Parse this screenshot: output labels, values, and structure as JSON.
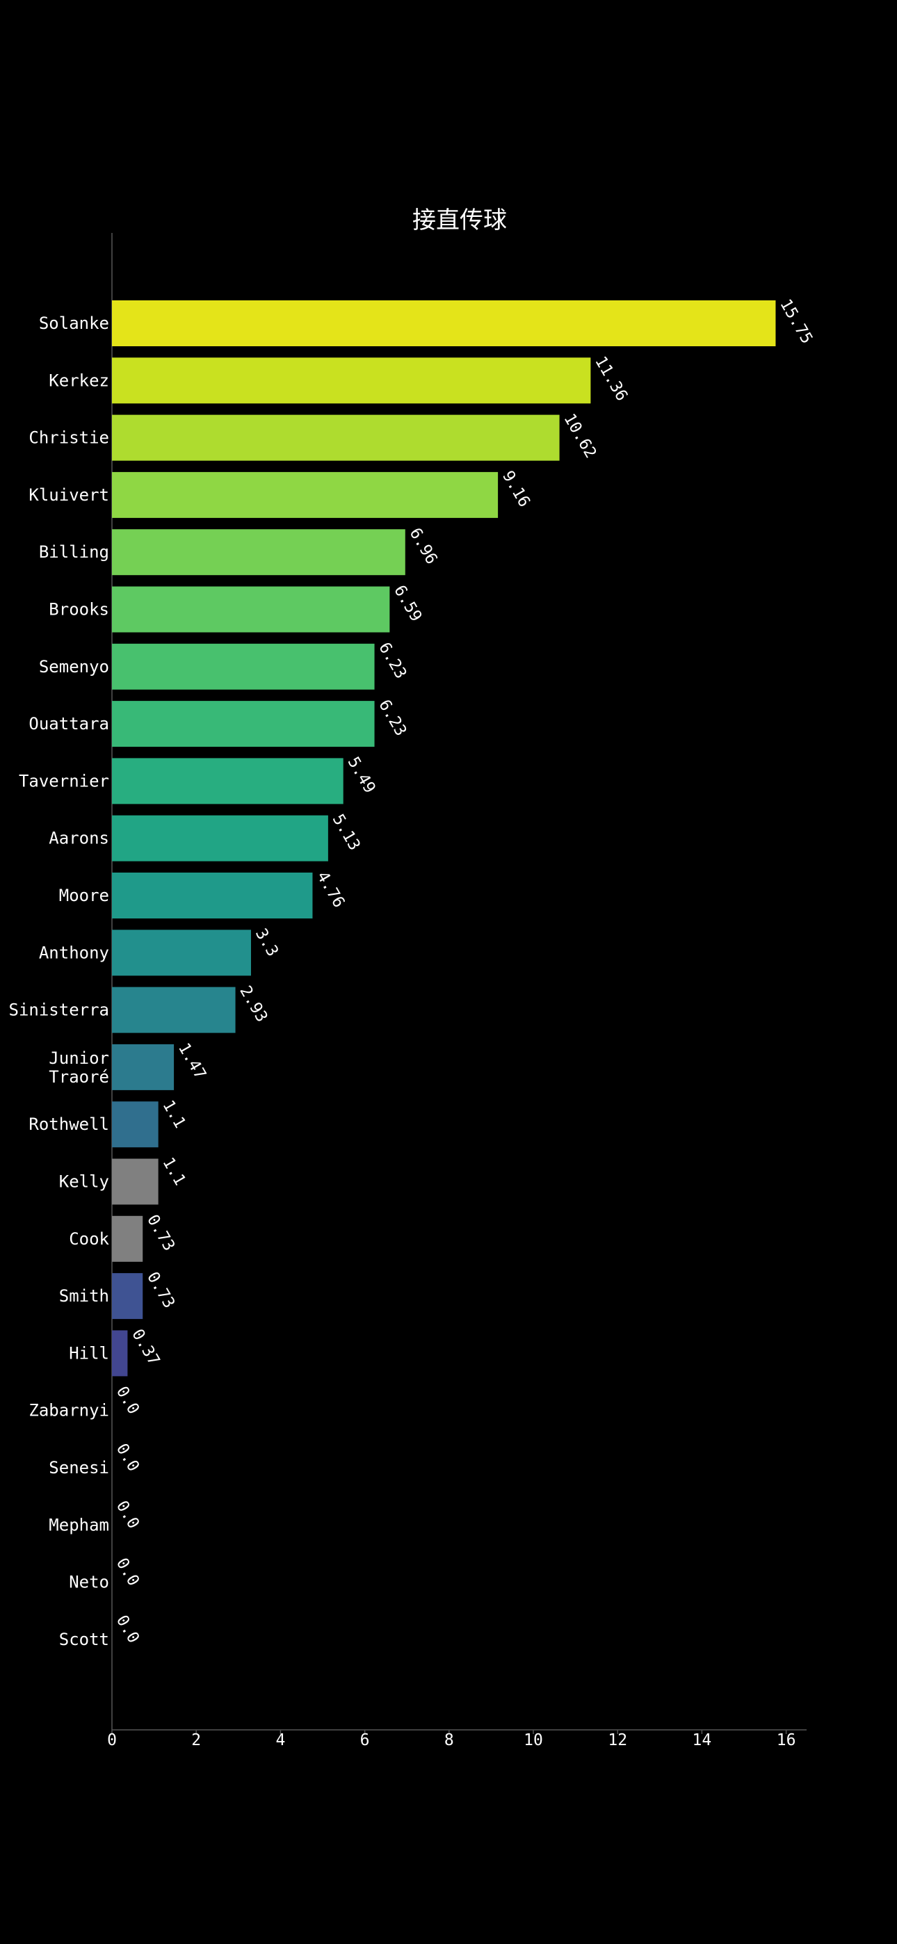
{
  "chart_data": {
    "type": "bar",
    "orientation": "horizontal",
    "title": "接直传球",
    "xlabel": "",
    "ylabel": "",
    "xlim": [
      0,
      16.5
    ],
    "x_ticks": [
      0,
      2,
      4,
      6,
      8,
      10,
      12,
      14,
      16
    ],
    "grid": false,
    "legend": "none",
    "categories": [
      "Solanke",
      "Kerkez",
      "Christie",
      "Kluivert",
      "Billing",
      "Brooks",
      "Semenyo",
      "Ouattara",
      "Tavernier",
      "Aarons",
      "Moore",
      "Anthony",
      "Sinisterra",
      "Junior Traoré",
      "Rothwell",
      "Kelly",
      "Cook",
      "Smith",
      "Hill",
      "Zabarnyi",
      "Senesi",
      "Mepham",
      "Neto",
      "Scott"
    ],
    "values": [
      15.75,
      11.36,
      10.62,
      9.16,
      6.96,
      6.59,
      6.23,
      6.23,
      5.49,
      5.13,
      4.76,
      3.3,
      2.93,
      1.47,
      1.1,
      1.1,
      0.73,
      0.73,
      0.37,
      0.0,
      0.0,
      0.0,
      0.0,
      0.0
    ],
    "value_labels": [
      "15.75",
      "11.36",
      "10.62",
      "9.16",
      "6.96",
      "6.59",
      "6.23",
      "6.23",
      "5.49",
      "5.13",
      "4.76",
      "3.3",
      "2.93",
      "1.47",
      "1.1",
      "1.1",
      "0.73",
      "0.73",
      "0.37",
      "0.0",
      "0.0",
      "0.0",
      "0.0",
      "0.0"
    ],
    "colors": [
      "#e4e419",
      "#c9e120",
      "#aedc2f",
      "#8fd744",
      "#75d054",
      "#5ec962",
      "#48c16e",
      "#38b977",
      "#28ae80",
      "#21a585",
      "#1f9a8a",
      "#22908d",
      "#27858e",
      "#2c7b8e",
      "#306f8e",
      "#808080",
      "#808080",
      "#3f5393",
      "#424690",
      "#414487",
      "#414487",
      "#414487",
      "#414487",
      "#414487"
    ]
  }
}
